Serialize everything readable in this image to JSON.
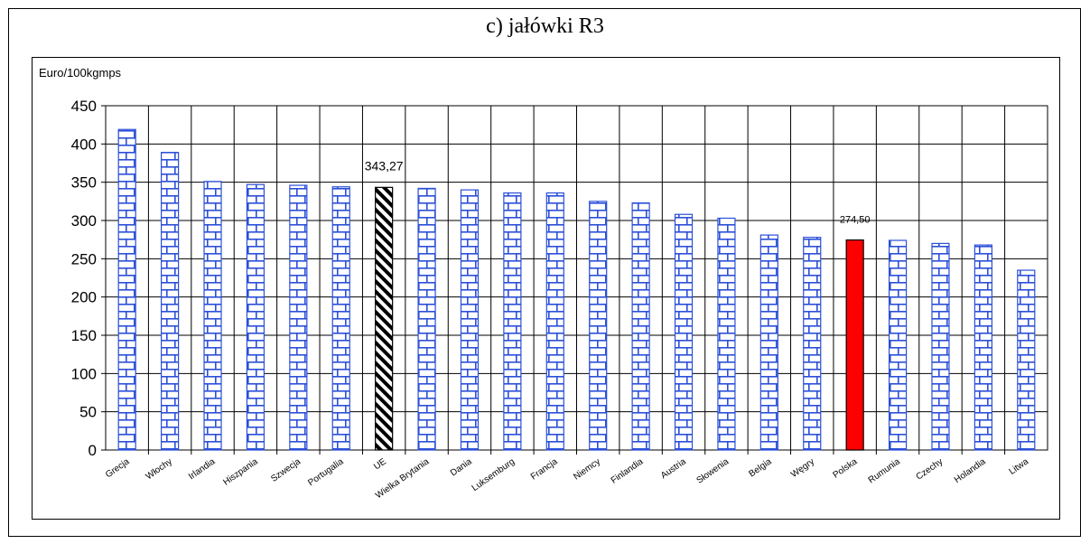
{
  "chart_data": {
    "type": "bar",
    "title": "c) jałówki R3",
    "ylabel": "Euro/100kgmps",
    "xlabel": "",
    "ylim": [
      0,
      450
    ],
    "yticks": [
      0,
      50,
      100,
      150,
      200,
      250,
      300,
      350,
      400,
      450
    ],
    "grid": true,
    "categories": [
      "Grecja",
      "Włochy",
      "Irlandia",
      "Hiszpania",
      "Szwecja",
      "Portugalia",
      "UE",
      "Wielka Brytania",
      "Dania",
      "Luksemburg",
      "Francja",
      "Niemcy",
      "Finlandia",
      "Austria",
      "Słowenia",
      "Belgia",
      "Węgry",
      "Polska",
      "Rumunia",
      "Czechy",
      "Holandia",
      "Litwa"
    ],
    "values": [
      419,
      389,
      351,
      347,
      346,
      344,
      343.27,
      342,
      340,
      336,
      336,
      325,
      323,
      308,
      303,
      281,
      278,
      274.5,
      274,
      270,
      268,
      235
    ],
    "data_labels": [
      {
        "category": "UE",
        "text": "343,27"
      },
      {
        "category": "Polska",
        "text": "274,50"
      }
    ],
    "colors": {
      "default_fill": "#ffffff",
      "default_pattern_line": "#2b4fd8",
      "highlight_eu": "hatched-black",
      "highlight_poland": "#ff0000"
    }
  }
}
